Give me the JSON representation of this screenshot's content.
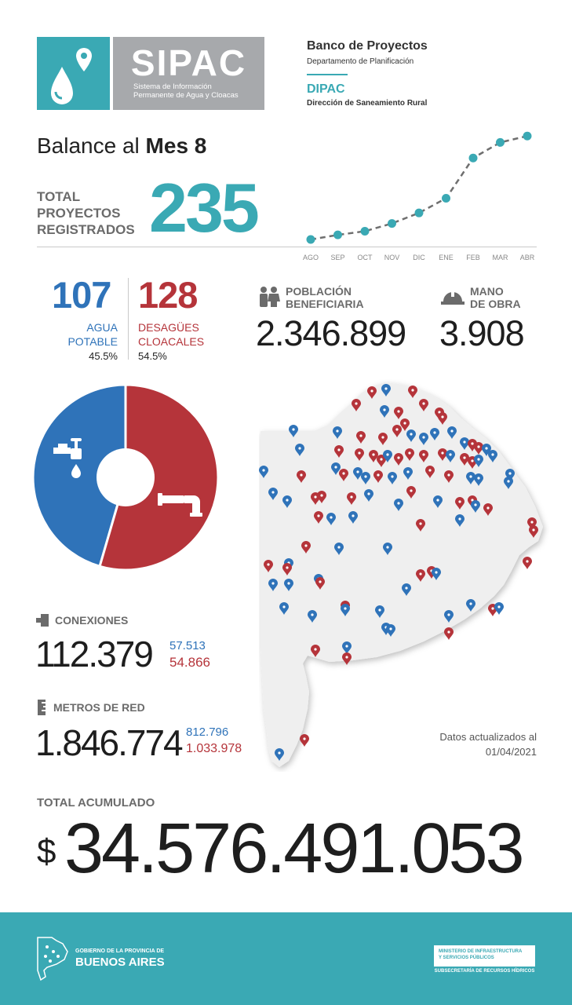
{
  "header": {
    "logo_name": "SIPAC",
    "logo_subtitle_line1": "Sistema de Información",
    "logo_subtitle_line2": "Permanente de Agua y Cloacas",
    "title": "Banco de Proyectos",
    "subtitle": "Departamento de Planificación",
    "org_short": "DIPAC",
    "org_long": "Dirección de Saneamiento Rural"
  },
  "balance": {
    "prefix": "Balance al ",
    "month": "Mes 8",
    "total_label_l1": "TOTAL",
    "total_label_l2": "PROYECTOS",
    "total_label_l3": "REGISTRADOS",
    "total_value": "235"
  },
  "chart_data": {
    "type": "line",
    "x": [
      "AGO",
      "SEP",
      "OCT",
      "NOV",
      "DIC",
      "ENE",
      "FEB",
      "MAR",
      "ABR"
    ],
    "values": [
      0,
      10,
      18,
      35,
      58,
      90,
      178,
      212,
      226
    ],
    "ylim": [
      0,
      235
    ],
    "grid": false
  },
  "stats": {
    "agua_value": "107",
    "agua_label_l1": "AGUA",
    "agua_label_l2": "POTABLE",
    "agua_pct": "45.5%",
    "cloaca_value": "128",
    "cloaca_label_l1": "DESAGÜES",
    "cloaca_label_l2": "CLOACALES",
    "cloaca_pct": "54.5%",
    "poblacion_label_l1": "POBLACIÓN",
    "poblacion_label_l2": "BENEFICIARIA",
    "poblacion_value": "2.346.899",
    "mano_label_l1": "MANO",
    "mano_label_l2": "DE OBRA",
    "mano_value": "3.908"
  },
  "donut": {
    "agua_fraction": 0.455,
    "cloaca_fraction": 0.545
  },
  "conexiones": {
    "label": "CONEXIONES",
    "total": "112.379",
    "agua": "57.513",
    "cloaca": "54.866"
  },
  "metros": {
    "label": "METROS DE RED",
    "total": "1.846.774",
    "agua": "812.796",
    "cloaca": "1.033.978"
  },
  "update": {
    "line1": "Datos actualizados al",
    "line2": "01/04/2021"
  },
  "acumulado": {
    "label": "TOTAL ACUMULADO",
    "currency": "$",
    "value": "34.576.491.053"
  },
  "footer": {
    "gob_line1": "GOBIERNO DE LA PROVINCIA DE",
    "gob_line2": "BUENOS AIRES",
    "min_line1": "MINISTERIO DE INFRAESTRUCTURA",
    "min_line2": "Y SERVICIOS PÚBLICOS",
    "min_sub": "SUBSECRETARÍA DE RECURSOS HÍDRICOS"
  },
  "colors": {
    "teal": "#3aa9b4",
    "blue": "#2f73b9",
    "red": "#b5343a",
    "grey": "#a7a9ac"
  },
  "icons": [
    "map-pin-icon",
    "water-drop-icon",
    "faucet-icon",
    "sewer-pipe-icon",
    "people-icon",
    "hard-hat-icon",
    "plug-icon",
    "ruler-icon",
    "province-map-icon"
  ]
}
